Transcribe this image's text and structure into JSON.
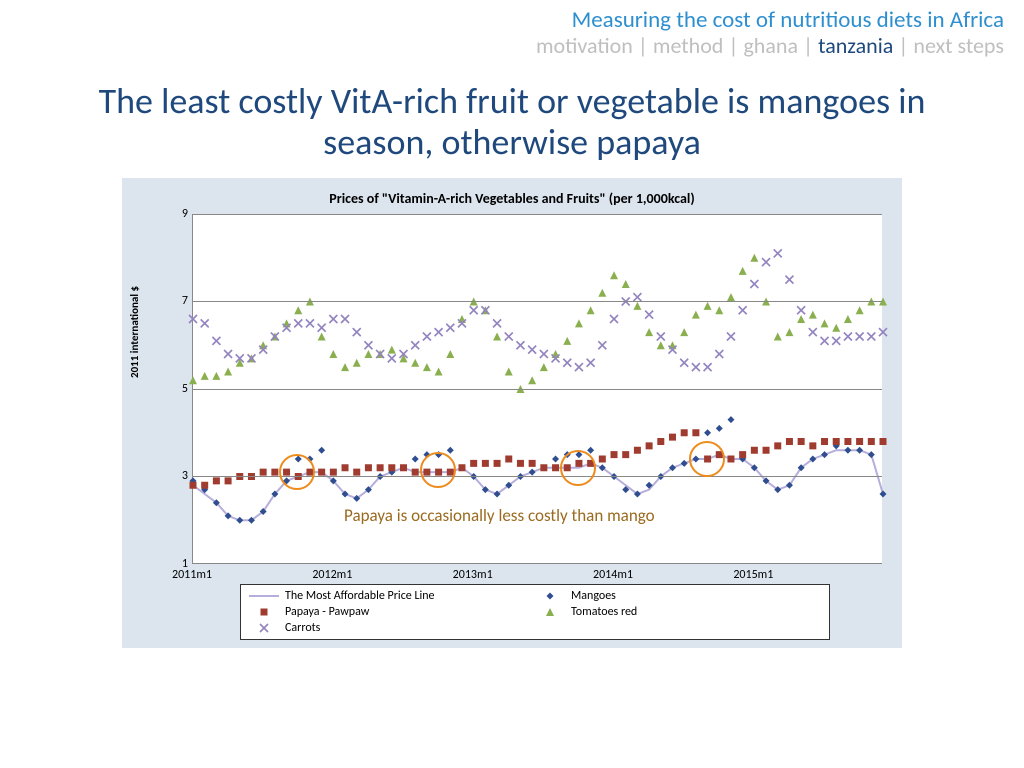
{
  "header": {
    "title": "Measuring the cost of nutritious diets in Africa",
    "title_color": "#2e8fcf",
    "crumbs": [
      "motivation",
      "method",
      "ghana",
      "tanzania",
      "next steps"
    ],
    "active_crumb": "tanzania",
    "sep": " | "
  },
  "slide_title": "The least costly VitA-rich fruit or vegetable is mangoes in season, otherwise papaya",
  "chart": {
    "type": "line-scatter",
    "title": "Prices of \"Vitamin-A-rich Vegetables and Fruits\" (per 1,000kcal)",
    "ylabel": "2011 international $",
    "background_color": "#dce5ee",
    "plot_background": "#ffffff",
    "grid_color": "#888888",
    "ylim": [
      1,
      9
    ],
    "yticks": [
      1,
      3,
      5,
      7,
      9
    ],
    "x_count": 60,
    "xticks": [
      {
        "idx": 0,
        "label": "2011m1"
      },
      {
        "idx": 12,
        "label": "2012m1"
      },
      {
        "idx": 24,
        "label": "2013m1"
      },
      {
        "idx": 36,
        "label": "2014m1"
      },
      {
        "idx": 48,
        "label": "2015m1"
      }
    ],
    "series": {
      "affordable_line": {
        "label": "The Most Affordable Price Line",
        "type": "line",
        "color": "#b5addb",
        "width": 2,
        "y": [
          2.8,
          2.6,
          2.4,
          2.1,
          2.0,
          2.0,
          2.2,
          2.6,
          2.9,
          3.0,
          3.1,
          3.1,
          2.9,
          2.6,
          2.5,
          2.7,
          3.0,
          3.1,
          3.2,
          3.1,
          3.1,
          3.1,
          3.1,
          3.2,
          3.0,
          2.7,
          2.6,
          2.8,
          3.0,
          3.1,
          3.2,
          3.2,
          3.2,
          3.2,
          3.3,
          3.2,
          3.0,
          2.8,
          2.6,
          2.7,
          3.0,
          3.2,
          3.3,
          3.4,
          3.4,
          3.5,
          3.4,
          3.4,
          3.2,
          2.9,
          2.7,
          2.8,
          3.2,
          3.4,
          3.5,
          3.6,
          3.6,
          3.6,
          3.5,
          2.6
        ]
      },
      "mangoes": {
        "label": "Mangoes",
        "type": "scatter",
        "marker": "diamond",
        "color": "#2f4e8f",
        "size": 7,
        "y": [
          2.9,
          2.7,
          2.4,
          2.1,
          2.0,
          2.0,
          2.2,
          2.6,
          2.9,
          3.4,
          3.4,
          3.6,
          2.9,
          2.6,
          2.5,
          2.7,
          3.0,
          3.1,
          3.2,
          3.4,
          3.5,
          3.5,
          3.6,
          3.2,
          3.0,
          2.7,
          2.6,
          2.8,
          3.0,
          3.1,
          3.2,
          3.4,
          3.5,
          3.5,
          3.6,
          3.2,
          3.0,
          2.7,
          2.6,
          2.8,
          3.0,
          3.2,
          3.3,
          3.4,
          4.0,
          4.1,
          4.3,
          3.4,
          3.2,
          2.9,
          2.7,
          2.8,
          3.2,
          3.4,
          3.5,
          3.7,
          3.6,
          3.6,
          3.5,
          2.6
        ]
      },
      "papaya": {
        "label": "Papaya - Pawpaw",
        "type": "scatter",
        "marker": "square",
        "color": "#a03b2f",
        "size": 7,
        "y": [
          2.8,
          2.8,
          2.9,
          2.9,
          3.0,
          3.0,
          3.1,
          3.1,
          3.1,
          3.0,
          3.1,
          3.1,
          3.1,
          3.2,
          3.1,
          3.2,
          3.2,
          3.2,
          3.2,
          3.1,
          3.1,
          3.1,
          3.1,
          3.2,
          3.3,
          3.3,
          3.3,
          3.4,
          3.3,
          3.3,
          3.2,
          3.2,
          3.2,
          3.3,
          3.3,
          3.4,
          3.5,
          3.5,
          3.6,
          3.7,
          3.8,
          3.9,
          4.0,
          4.0,
          3.4,
          3.5,
          3.4,
          3.5,
          3.6,
          3.6,
          3.7,
          3.8,
          3.8,
          3.7,
          3.8,
          3.8,
          3.8,
          3.8,
          3.8,
          3.8
        ]
      },
      "tomatoes": {
        "label": "Tomatoes red",
        "type": "scatter",
        "marker": "triangle",
        "color": "#8aaf4f",
        "size": 8,
        "y": [
          5.2,
          5.3,
          5.3,
          5.4,
          5.6,
          5.7,
          6.0,
          6.2,
          6.5,
          6.8,
          7.0,
          6.2,
          5.8,
          5.5,
          5.6,
          5.8,
          5.8,
          5.9,
          5.7,
          5.6,
          5.5,
          5.4,
          5.8,
          6.6,
          7.0,
          6.8,
          6.2,
          5.4,
          5.0,
          5.2,
          5.5,
          5.8,
          6.1,
          6.5,
          6.8,
          7.2,
          7.6,
          7.4,
          6.9,
          6.3,
          6.0,
          6.0,
          6.3,
          6.7,
          6.9,
          6.8,
          7.1,
          7.7,
          8.0,
          7.0,
          6.2,
          6.3,
          6.6,
          6.7,
          6.5,
          6.4,
          6.6,
          6.8,
          7.0,
          7.0
        ]
      },
      "carrots": {
        "label": "Carrots",
        "type": "scatter",
        "marker": "x",
        "color": "#9384bf",
        "size": 8,
        "y": [
          6.6,
          6.5,
          6.1,
          5.8,
          5.7,
          5.7,
          5.9,
          6.2,
          6.4,
          6.5,
          6.5,
          6.4,
          6.6,
          6.6,
          6.3,
          6.0,
          5.8,
          5.7,
          5.8,
          6.0,
          6.2,
          6.3,
          6.4,
          6.5,
          6.8,
          6.8,
          6.5,
          6.2,
          6.0,
          5.9,
          5.8,
          5.7,
          5.6,
          5.5,
          5.6,
          6.0,
          6.6,
          7.0,
          7.1,
          6.7,
          6.2,
          5.9,
          5.6,
          5.5,
          5.5,
          5.8,
          6.2,
          6.8,
          7.4,
          7.9,
          8.1,
          7.5,
          6.8,
          6.3,
          6.1,
          6.1,
          6.2,
          6.2,
          6.2,
          6.3
        ]
      }
    },
    "annotation_circles": [
      {
        "x_idx": 9,
        "y": 3.1,
        "d": 36,
        "color": "#ed8b1c"
      },
      {
        "x_idx": 21,
        "y": 3.15,
        "d": 36,
        "color": "#ed8b1c"
      },
      {
        "x_idx": 33,
        "y": 3.2,
        "d": 36,
        "color": "#ed8b1c"
      },
      {
        "x_idx": 44,
        "y": 3.4,
        "d": 36,
        "color": "#ed8b1c"
      }
    ],
    "annotation": {
      "text": "Papaya is occasionally less costly than mango",
      "color": "#9a6a1e",
      "x_idx": 13,
      "y": 2.35
    }
  },
  "legend_order": [
    "affordable_line",
    "mangoes",
    "papaya",
    "tomatoes",
    "carrots"
  ]
}
